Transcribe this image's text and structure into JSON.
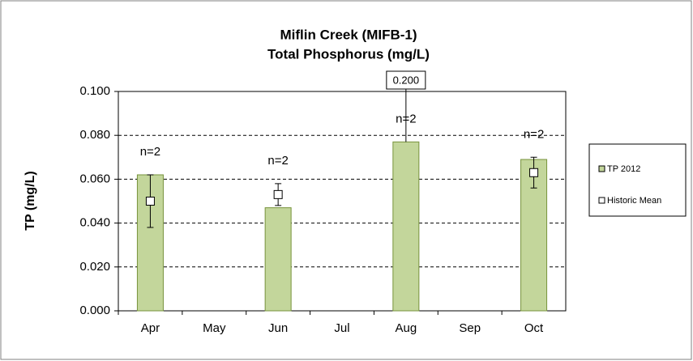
{
  "chart_data": {
    "type": "bar",
    "title": [
      "Miflin Creek (MIFB-1)",
      "Total Phosphorus (mg/L)"
    ],
    "y_label": "TP (mg/L)",
    "categories": [
      "Apr",
      "May",
      "Jun",
      "Jul",
      "Aug",
      "Sep",
      "Oct"
    ],
    "series": [
      {
        "name": "TP 2012",
        "color": "#c3d69b",
        "values": [
          0.062,
          null,
          0.047,
          null,
          0.077,
          null,
          0.069
        ]
      },
      {
        "name": "Historic Mean",
        "color": "#ffffff",
        "values": [
          0.05,
          null,
          0.053,
          null,
          null,
          null,
          0.063
        ],
        "errors": [
          0.012,
          null,
          0.005,
          null,
          null,
          null,
          0.007
        ]
      }
    ],
    "sample_labels": [
      "n=2",
      null,
      "n=2",
      null,
      "n=2",
      null,
      "n=2"
    ],
    "annotation": "0.200",
    "ylim": [
      0,
      0.1
    ],
    "yticks": [
      {
        "value": 0,
        "label": "0.000"
      },
      {
        "value": 0.02,
        "label": "0.020"
      },
      {
        "value": 0.04,
        "label": "0.040"
      },
      {
        "value": 0.06,
        "label": "0.060"
      },
      {
        "value": 0.08,
        "label": "0.080"
      },
      {
        "value": 0.1,
        "label": "0.100"
      }
    ],
    "grid": true,
    "legend": "right"
  }
}
